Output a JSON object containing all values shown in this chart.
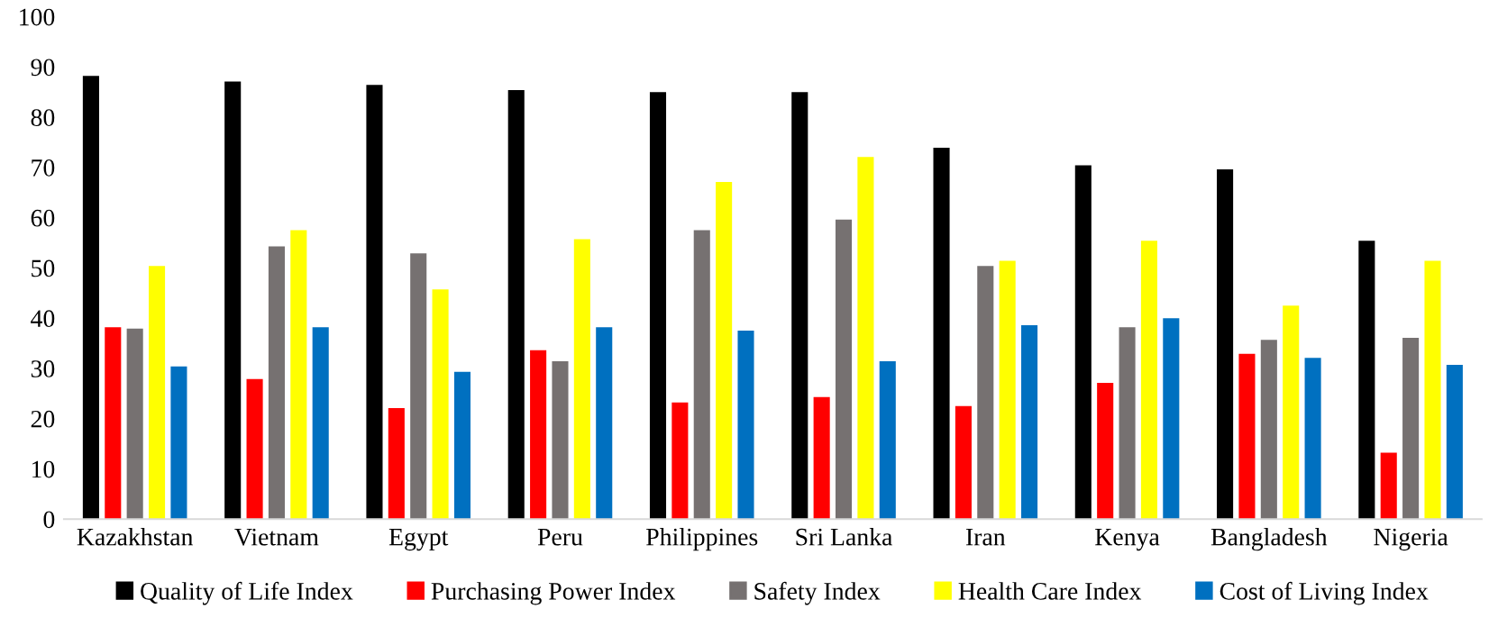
{
  "chart_data": {
    "type": "bar",
    "categories": [
      "Kazakhstan",
      "Vietnam",
      "Egypt",
      "Peru",
      "Philippines",
      "Sri Lanka",
      "Iran",
      "Kenya",
      "Bangladesh",
      "Nigeria"
    ],
    "series": [
      {
        "name": "Quality of Life Index",
        "color": "#000000",
        "values": [
          88.2,
          87.1,
          86.4,
          85.4,
          85.0,
          85.0,
          73.9,
          70.4,
          69.6,
          55.4
        ]
      },
      {
        "name": "Purchasing Power Index",
        "color": "#ff0000",
        "values": [
          38.2,
          27.9,
          22.1,
          33.6,
          23.2,
          24.3,
          22.5,
          27.1,
          32.9,
          13.2
        ]
      },
      {
        "name": "Safety Index",
        "color": "#767171",
        "values": [
          37.9,
          54.3,
          52.9,
          31.4,
          57.5,
          59.6,
          50.4,
          38.2,
          35.7,
          36.1
        ]
      },
      {
        "name": "Health Care Index",
        "color": "#ffff00",
        "values": [
          50.4,
          57.5,
          45.7,
          55.7,
          67.1,
          72.1,
          51.4,
          55.4,
          42.5,
          51.4
        ]
      },
      {
        "name": "Cost of Living Index",
        "color": "#0070c0",
        "values": [
          30.4,
          38.2,
          29.3,
          38.2,
          37.5,
          31.4,
          38.6,
          40.0,
          32.1,
          30.7
        ]
      }
    ],
    "ylim": [
      0,
      100
    ],
    "yticks": [
      0,
      10,
      20,
      30,
      40,
      50,
      60,
      70,
      80,
      90,
      100
    ],
    "grid": false,
    "legend": "bottom"
  }
}
